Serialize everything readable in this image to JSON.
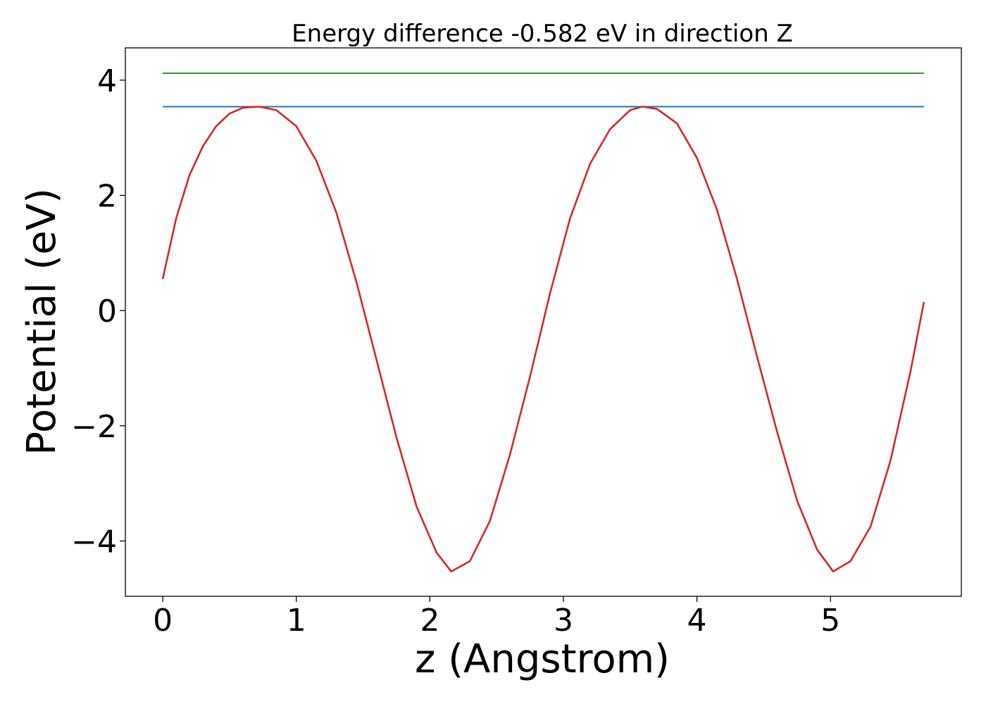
{
  "chart_data": {
    "type": "line",
    "title": "Energy difference -0.582 eV in direction Z",
    "xlabel": "z (Angstrom)",
    "ylabel": "Potential (eV)",
    "xlim": [
      -0.28,
      5.98
    ],
    "ylim": [
      -4.96,
      4.56
    ],
    "xticks": [
      0,
      1,
      2,
      3,
      4,
      5
    ],
    "yticks": [
      -4,
      -2,
      0,
      2,
      4
    ],
    "ytick_labels": [
      "−4",
      "−2",
      "0",
      "2",
      "4"
    ],
    "grid": false,
    "legend": "none",
    "series": [
      {
        "color": "#2ca02c",
        "x": [
          0,
          5.7
        ],
        "y": [
          4.12,
          4.12
        ]
      },
      {
        "color": "#1f77b4",
        "x": [
          0,
          5.7
        ],
        "y": [
          3.54,
          3.54
        ]
      },
      {
        "color": "#d62728",
        "x": [
          0,
          0.1,
          0.2,
          0.3,
          0.4,
          0.5,
          0.6,
          0.72,
          0.85,
          1.0,
          1.15,
          1.3,
          1.45,
          1.6,
          1.75,
          1.9,
          2.05,
          2.16,
          2.3,
          2.45,
          2.6,
          2.75,
          2.9,
          3.05,
          3.2,
          3.35,
          3.5,
          3.59,
          3.7,
          3.85,
          4.0,
          4.15,
          4.3,
          4.45,
          4.6,
          4.75,
          4.9,
          5.02,
          5.15,
          5.3,
          5.45,
          5.6,
          5.7
        ],
        "y": [
          0.55,
          1.6,
          2.35,
          2.85,
          3.2,
          3.42,
          3.52,
          3.54,
          3.48,
          3.2,
          2.6,
          1.7,
          0.5,
          -0.85,
          -2.2,
          -3.4,
          -4.2,
          -4.53,
          -4.35,
          -3.65,
          -2.5,
          -1.15,
          0.3,
          1.6,
          2.55,
          3.15,
          3.48,
          3.54,
          3.5,
          3.25,
          2.65,
          1.75,
          0.55,
          -0.8,
          -2.1,
          -3.3,
          -4.15,
          -4.53,
          -4.35,
          -3.75,
          -2.6,
          -1.05,
          0.15
        ]
      }
    ]
  }
}
